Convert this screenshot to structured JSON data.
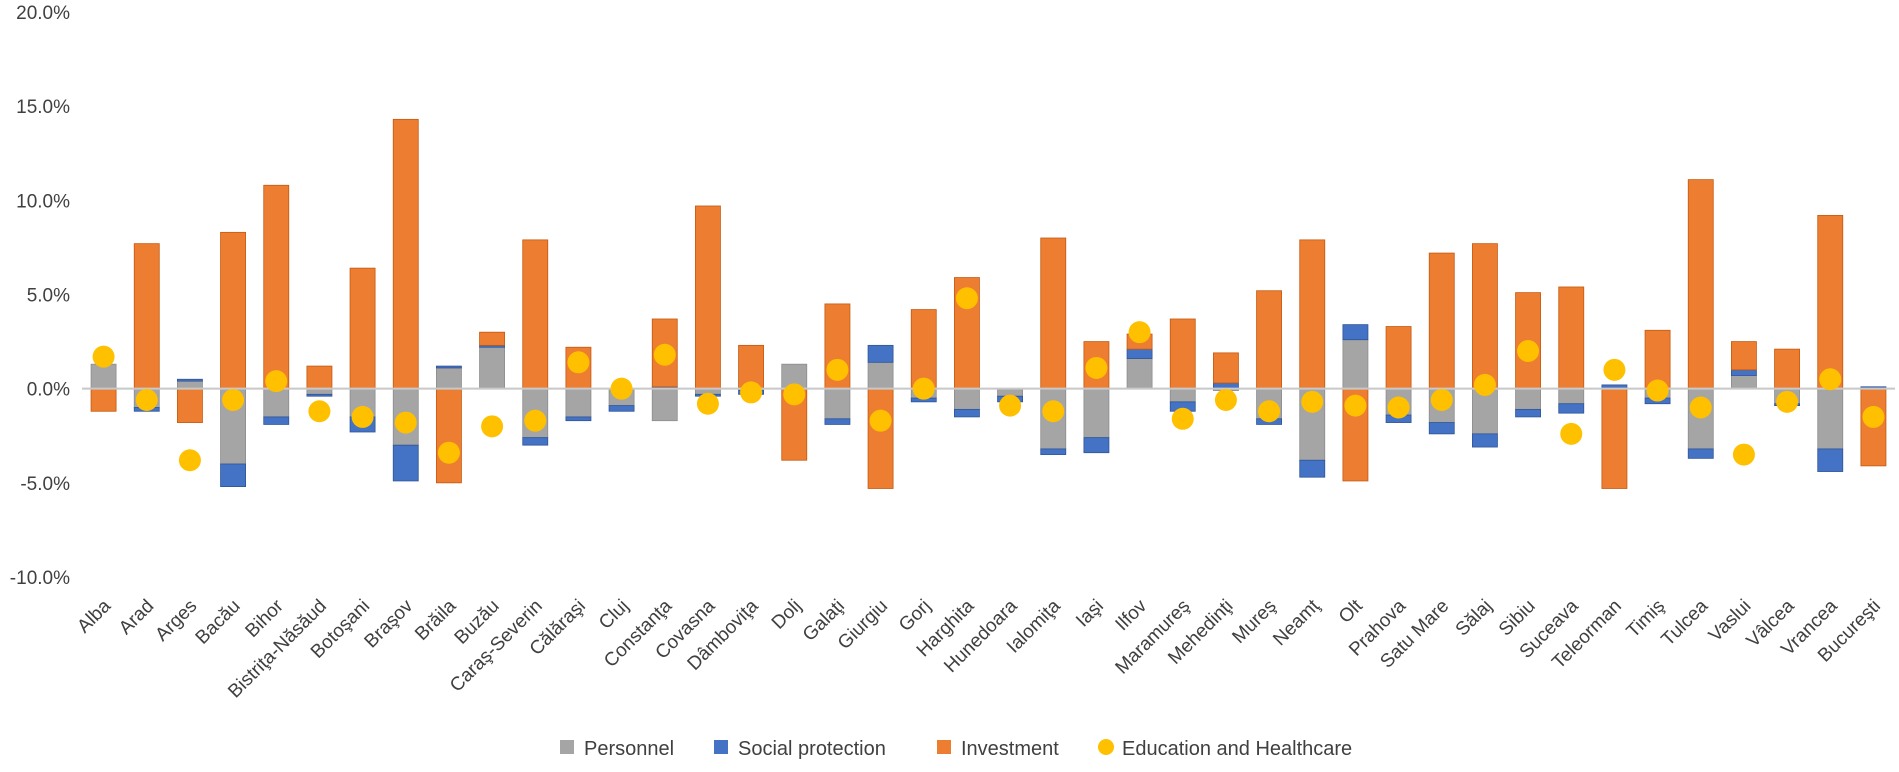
{
  "chart_data": {
    "type": "bar",
    "stacked": true,
    "title": "",
    "xlabel": "",
    "ylabel": "",
    "ylim": [
      -0.1,
      0.2
    ],
    "yticks": [
      -0.1,
      -0.05,
      0.0,
      0.05,
      0.1,
      0.15,
      0.2
    ],
    "ytick_labels": [
      "-10.0%",
      "-5.0%",
      "0.0%",
      "5.0%",
      "10.0%",
      "15.0%",
      "20.0%"
    ],
    "grid": false,
    "legend_position": "bottom",
    "categories": [
      "Alba",
      "Arad",
      "Arges",
      "Bacău",
      "Bihor",
      "Bistriţa-Năsăud",
      "Botoşani",
      "Braşov",
      "Brăila",
      "Buzău",
      "Caraş-Severin",
      "Călăraşi",
      "Cluj",
      "Constanţa",
      "Covasna",
      "Dâmboviţa",
      "Dolj",
      "Galaţi",
      "Giurgiu",
      "Gorj",
      "Harghita",
      "Hunedoara",
      "Ialomiţa",
      "Iaşi",
      "Ilfov",
      "Maramureş",
      "Mehedinţi",
      "Mureş",
      "Neamţ",
      "Olt",
      "Prahova",
      "Satu Mare",
      "Sălaj",
      "Sibiu",
      "Suceava",
      "Teleorman",
      "Timiş",
      "Tulcea",
      "Vaslui",
      "Vâlcea",
      "Vrancea",
      "Bucureşti"
    ],
    "series": [
      {
        "name": "Personnel",
        "kind": "bar",
        "color": "#a5a5a5",
        "values": [
          0.013,
          -0.01,
          0.004,
          -0.04,
          -0.015,
          -0.003,
          -0.015,
          -0.03,
          0.011,
          0.022,
          -0.026,
          -0.015,
          -0.009,
          -0.017,
          -0.003,
          -0.001,
          0.013,
          -0.016,
          0.014,
          -0.005,
          -0.011,
          -0.004,
          -0.032,
          -0.026,
          0.016,
          -0.007,
          -0.001,
          -0.016,
          -0.038,
          0.026,
          -0.014,
          -0.018,
          -0.024,
          -0.011,
          -0.008,
          0.0,
          -0.005,
          -0.032,
          0.007,
          -0.008,
          -0.032,
          0.0
        ]
      },
      {
        "name": "Social protection",
        "kind": "bar",
        "color": "#4472c4",
        "values": [
          0.0,
          -0.002,
          0.001,
          -0.012,
          -0.004,
          -0.001,
          -0.008,
          -0.019,
          0.001,
          0.001,
          -0.004,
          -0.002,
          -0.003,
          0.001,
          -0.001,
          -0.002,
          0.0,
          -0.003,
          0.009,
          -0.002,
          -0.004,
          -0.003,
          -0.003,
          -0.008,
          0.005,
          -0.005,
          0.003,
          -0.003,
          -0.009,
          0.008,
          -0.004,
          -0.006,
          -0.007,
          -0.004,
          -0.005,
          0.002,
          -0.003,
          -0.005,
          0.003,
          -0.001,
          -0.012,
          0.001
        ]
      },
      {
        "name": "Investment",
        "kind": "bar",
        "color": "#ed7d31",
        "values": [
          -0.012,
          0.077,
          -0.018,
          0.083,
          0.108,
          0.012,
          0.064,
          0.143,
          -0.05,
          0.007,
          0.079,
          0.022,
          0.0,
          0.036,
          0.097,
          0.023,
          -0.038,
          0.045,
          -0.053,
          0.042,
          0.059,
          0.0,
          0.08,
          0.025,
          0.008,
          0.037,
          0.016,
          0.052,
          0.079,
          -0.049,
          0.033,
          0.072,
          0.077,
          0.051,
          0.054,
          -0.053,
          0.031,
          0.111,
          0.015,
          0.021,
          0.092,
          -0.041
        ]
      },
      {
        "name": "Education and Healthcare",
        "kind": "marker",
        "color": "#ffc000",
        "values": [
          0.017,
          -0.006,
          -0.038,
          -0.006,
          0.004,
          -0.012,
          -0.015,
          -0.018,
          -0.034,
          -0.02,
          -0.017,
          0.014,
          0.0,
          0.018,
          -0.008,
          -0.002,
          -0.003,
          0.01,
          -0.017,
          0.0,
          0.048,
          -0.009,
          -0.012,
          0.011,
          0.03,
          -0.016,
          -0.006,
          -0.012,
          -0.007,
          -0.009,
          -0.01,
          -0.006,
          0.002,
          0.02,
          -0.024,
          0.01,
          -0.001,
          -0.01,
          -0.035,
          -0.007,
          0.005,
          -0.015
        ]
      }
    ]
  }
}
